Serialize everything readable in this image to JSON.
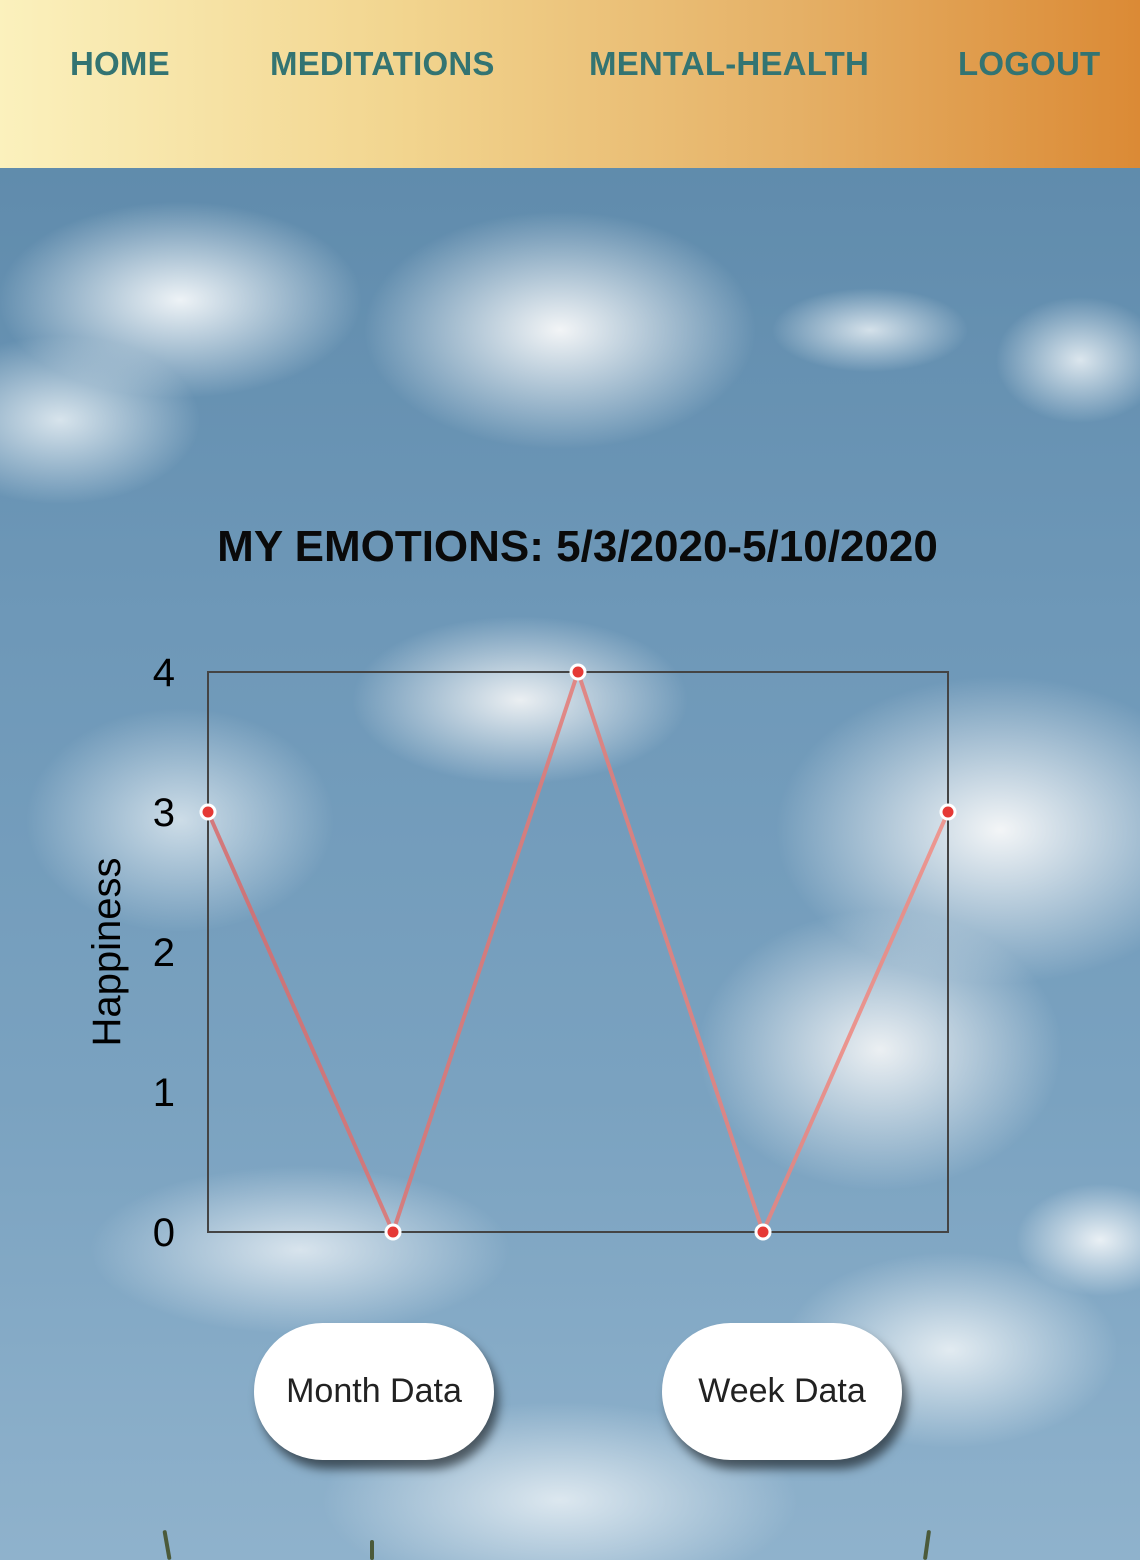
{
  "nav": {
    "items": [
      {
        "label": "HOME"
      },
      {
        "label": "MEDITATIONS"
      },
      {
        "label": "MENTAL-HEALTH"
      },
      {
        "label": "LOGOUT"
      }
    ]
  },
  "colors": {
    "nav_text": "#337472",
    "nav_gradient_start": "#fbf1bd",
    "nav_gradient_end": "#db8a35",
    "line": "#e57373",
    "point": "#e53935"
  },
  "chart_data": {
    "type": "line",
    "title": "MY EMOTIONS: 5/3/2020-5/10/2020",
    "xlabel": "",
    "ylabel": "Happiness",
    "y_ticks": [
      "0",
      "1",
      "2",
      "3",
      "4"
    ],
    "ylim": [
      0,
      4
    ],
    "x": [
      0,
      1,
      2,
      3,
      4
    ],
    "values": [
      3,
      0,
      4,
      0,
      3
    ],
    "grid": false
  },
  "buttons": {
    "month": "Month Data",
    "week": "Week Data"
  }
}
